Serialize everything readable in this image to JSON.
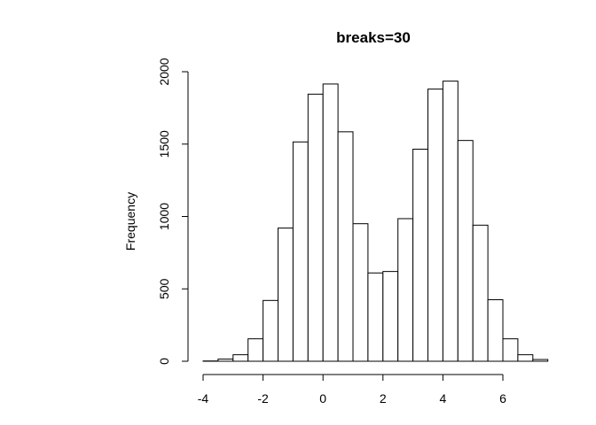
{
  "chart_data": {
    "type": "bar",
    "title": "breaks=30",
    "xlabel": "",
    "ylabel": "Frequency",
    "bin_width": 0.5,
    "bins": [
      {
        "x0": -4.0,
        "x1": -3.5,
        "count": 2
      },
      {
        "x0": -3.5,
        "x1": -3.0,
        "count": 15
      },
      {
        "x0": -3.0,
        "x1": -2.5,
        "count": 45
      },
      {
        "x0": -2.5,
        "x1": -2.0,
        "count": 155
      },
      {
        "x0": -2.0,
        "x1": -1.5,
        "count": 420
      },
      {
        "x0": -1.5,
        "x1": -1.0,
        "count": 920
      },
      {
        "x0": -1.0,
        "x1": -0.5,
        "count": 1515
      },
      {
        "x0": -0.5,
        "x1": 0.0,
        "count": 1845
      },
      {
        "x0": 0.0,
        "x1": 0.5,
        "count": 1915
      },
      {
        "x0": 0.5,
        "x1": 1.0,
        "count": 1585
      },
      {
        "x0": 1.0,
        "x1": 1.5,
        "count": 950
      },
      {
        "x0": 1.5,
        "x1": 2.0,
        "count": 610
      },
      {
        "x0": 2.0,
        "x1": 2.5,
        "count": 620
      },
      {
        "x0": 2.5,
        "x1": 3.0,
        "count": 985
      },
      {
        "x0": 3.0,
        "x1": 3.5,
        "count": 1465
      },
      {
        "x0": 3.5,
        "x1": 4.0,
        "count": 1880
      },
      {
        "x0": 4.0,
        "x1": 4.5,
        "count": 1935
      },
      {
        "x0": 4.5,
        "x1": 5.0,
        "count": 1525
      },
      {
        "x0": 5.0,
        "x1": 5.5,
        "count": 940
      },
      {
        "x0": 5.5,
        "x1": 6.0,
        "count": 425
      },
      {
        "x0": 6.0,
        "x1": 6.5,
        "count": 155
      },
      {
        "x0": 6.5,
        "x1": 7.0,
        "count": 45
      },
      {
        "x0": 7.0,
        "x1": 7.5,
        "count": 12
      }
    ],
    "x_ticks": [
      "-4",
      "-2",
      "0",
      "2",
      "4",
      "6"
    ],
    "y_ticks": [
      "0",
      "500",
      "1000",
      "1500",
      "2000"
    ],
    "xlim": [
      -4,
      7.5
    ],
    "ylim": [
      0,
      2000
    ],
    "grid": false,
    "colors": {
      "bar_fill": "#ffffff",
      "bar_stroke": "#000000"
    }
  }
}
